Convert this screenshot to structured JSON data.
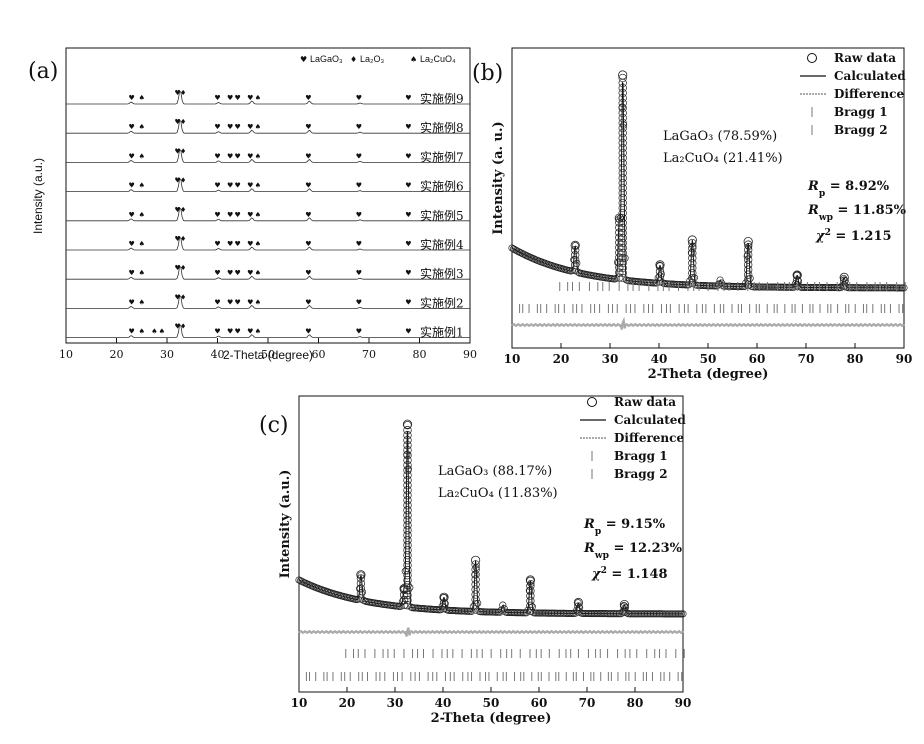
{
  "figure": {
    "colors": {
      "ink": "#111111",
      "gray": "#777777",
      "light": "#aaaaaa"
    }
  },
  "chart_data": [
    {
      "panel": "(a)",
      "type": "line",
      "xlabel": "2-Theta (degree)",
      "ylabel": "Intensity (a.u.)",
      "xlim": [
        10,
        90
      ],
      "xticks": [
        "10",
        "20",
        "30",
        "40",
        "50",
        "60",
        "70",
        "80",
        "90"
      ],
      "legend": [
        {
          "marker": "♥",
          "label": "LaGaO₃"
        },
        {
          "marker": "♦",
          "label": "La₂O₃"
        },
        {
          "marker": "♠",
          "label": "La₂CuO₄"
        }
      ],
      "series": [
        {
          "name": "实施例9"
        },
        {
          "name": "实施例8"
        },
        {
          "name": "实施例7"
        },
        {
          "name": "实施例6"
        },
        {
          "name": "实施例5"
        },
        {
          "name": "实施例4"
        },
        {
          "name": "实施例3"
        },
        {
          "name": "实施例2"
        },
        {
          "name": "实施例1"
        }
      ],
      "peak_markers_2theta": [
        23.0,
        25.0,
        32.1,
        33.2,
        40.0,
        42.5,
        44.0,
        46.5,
        48.0,
        58.0,
        68.0,
        77.8
      ],
      "sample1_extra_markers_2theta": [
        27.5,
        29.0
      ]
    },
    {
      "panel": "(b)",
      "type": "line",
      "xlabel": "2-Theta (degree)",
      "ylabel": "Intensity (a. u.)",
      "xlim": [
        10,
        90
      ],
      "xticks": [
        "10",
        "20",
        "30",
        "40",
        "50",
        "60",
        "70",
        "80",
        "90"
      ],
      "legend": [
        {
          "symbol": "circle",
          "label": "Raw data"
        },
        {
          "symbol": "line",
          "label": "Calculated"
        },
        {
          "symbol": "dotted",
          "label": "Difference"
        },
        {
          "symbol": "tick",
          "label": "Bragg 1"
        },
        {
          "symbol": "tick",
          "label": "Bragg 2"
        }
      ],
      "phases": [
        "LaGaO₃ (78.59%)",
        "La₂CuO₄ (21.41%)"
      ],
      "stats": {
        "Rp": "8.92%",
        "Rwp": "11.85%",
        "chi2": "1.215"
      },
      "peaks": [
        {
          "x": 22.9,
          "y": 13
        },
        {
          "x": 31.9,
          "y": 30
        },
        {
          "x": 32.6,
          "y": 100
        },
        {
          "x": 40.2,
          "y": 9
        },
        {
          "x": 46.8,
          "y": 22
        },
        {
          "x": 52.5,
          "y": 3
        },
        {
          "x": 58.2,
          "y": 22
        },
        {
          "x": 68.2,
          "y": 6
        },
        {
          "x": 77.8,
          "y": 5
        }
      ]
    },
    {
      "panel": "(c)",
      "type": "line",
      "xlabel": "2-Theta (degree)",
      "ylabel": "Intensity (a.u.)",
      "xlim": [
        10,
        90
      ],
      "xticks": [
        "10",
        "20",
        "30",
        "40",
        "50",
        "60",
        "70",
        "80",
        "90"
      ],
      "legend": [
        {
          "symbol": "circle",
          "label": "Raw data"
        },
        {
          "symbol": "line",
          "label": "Calculated"
        },
        {
          "symbol": "dotted",
          "label": "Difference"
        },
        {
          "symbol": "tick",
          "label": "Bragg 1"
        },
        {
          "symbol": "tick",
          "label": "Bragg 2"
        }
      ],
      "phases": [
        "LaGaO₃ (88.17%)",
        "La₂CuO₄ (11.83%)"
      ],
      "stats": {
        "Rp": "9.15%",
        "Rwp": "12.23%",
        "chi2": "1.148"
      },
      "peaks": [
        {
          "x": 22.9,
          "y": 14
        },
        {
          "x": 31.9,
          "y": 10
        },
        {
          "x": 32.6,
          "y": 100
        },
        {
          "x": 40.2,
          "y": 7
        },
        {
          "x": 46.8,
          "y": 28
        },
        {
          "x": 52.5,
          "y": 4
        },
        {
          "x": 58.2,
          "y": 18
        },
        {
          "x": 68.2,
          "y": 6
        },
        {
          "x": 77.8,
          "y": 5
        }
      ]
    }
  ]
}
